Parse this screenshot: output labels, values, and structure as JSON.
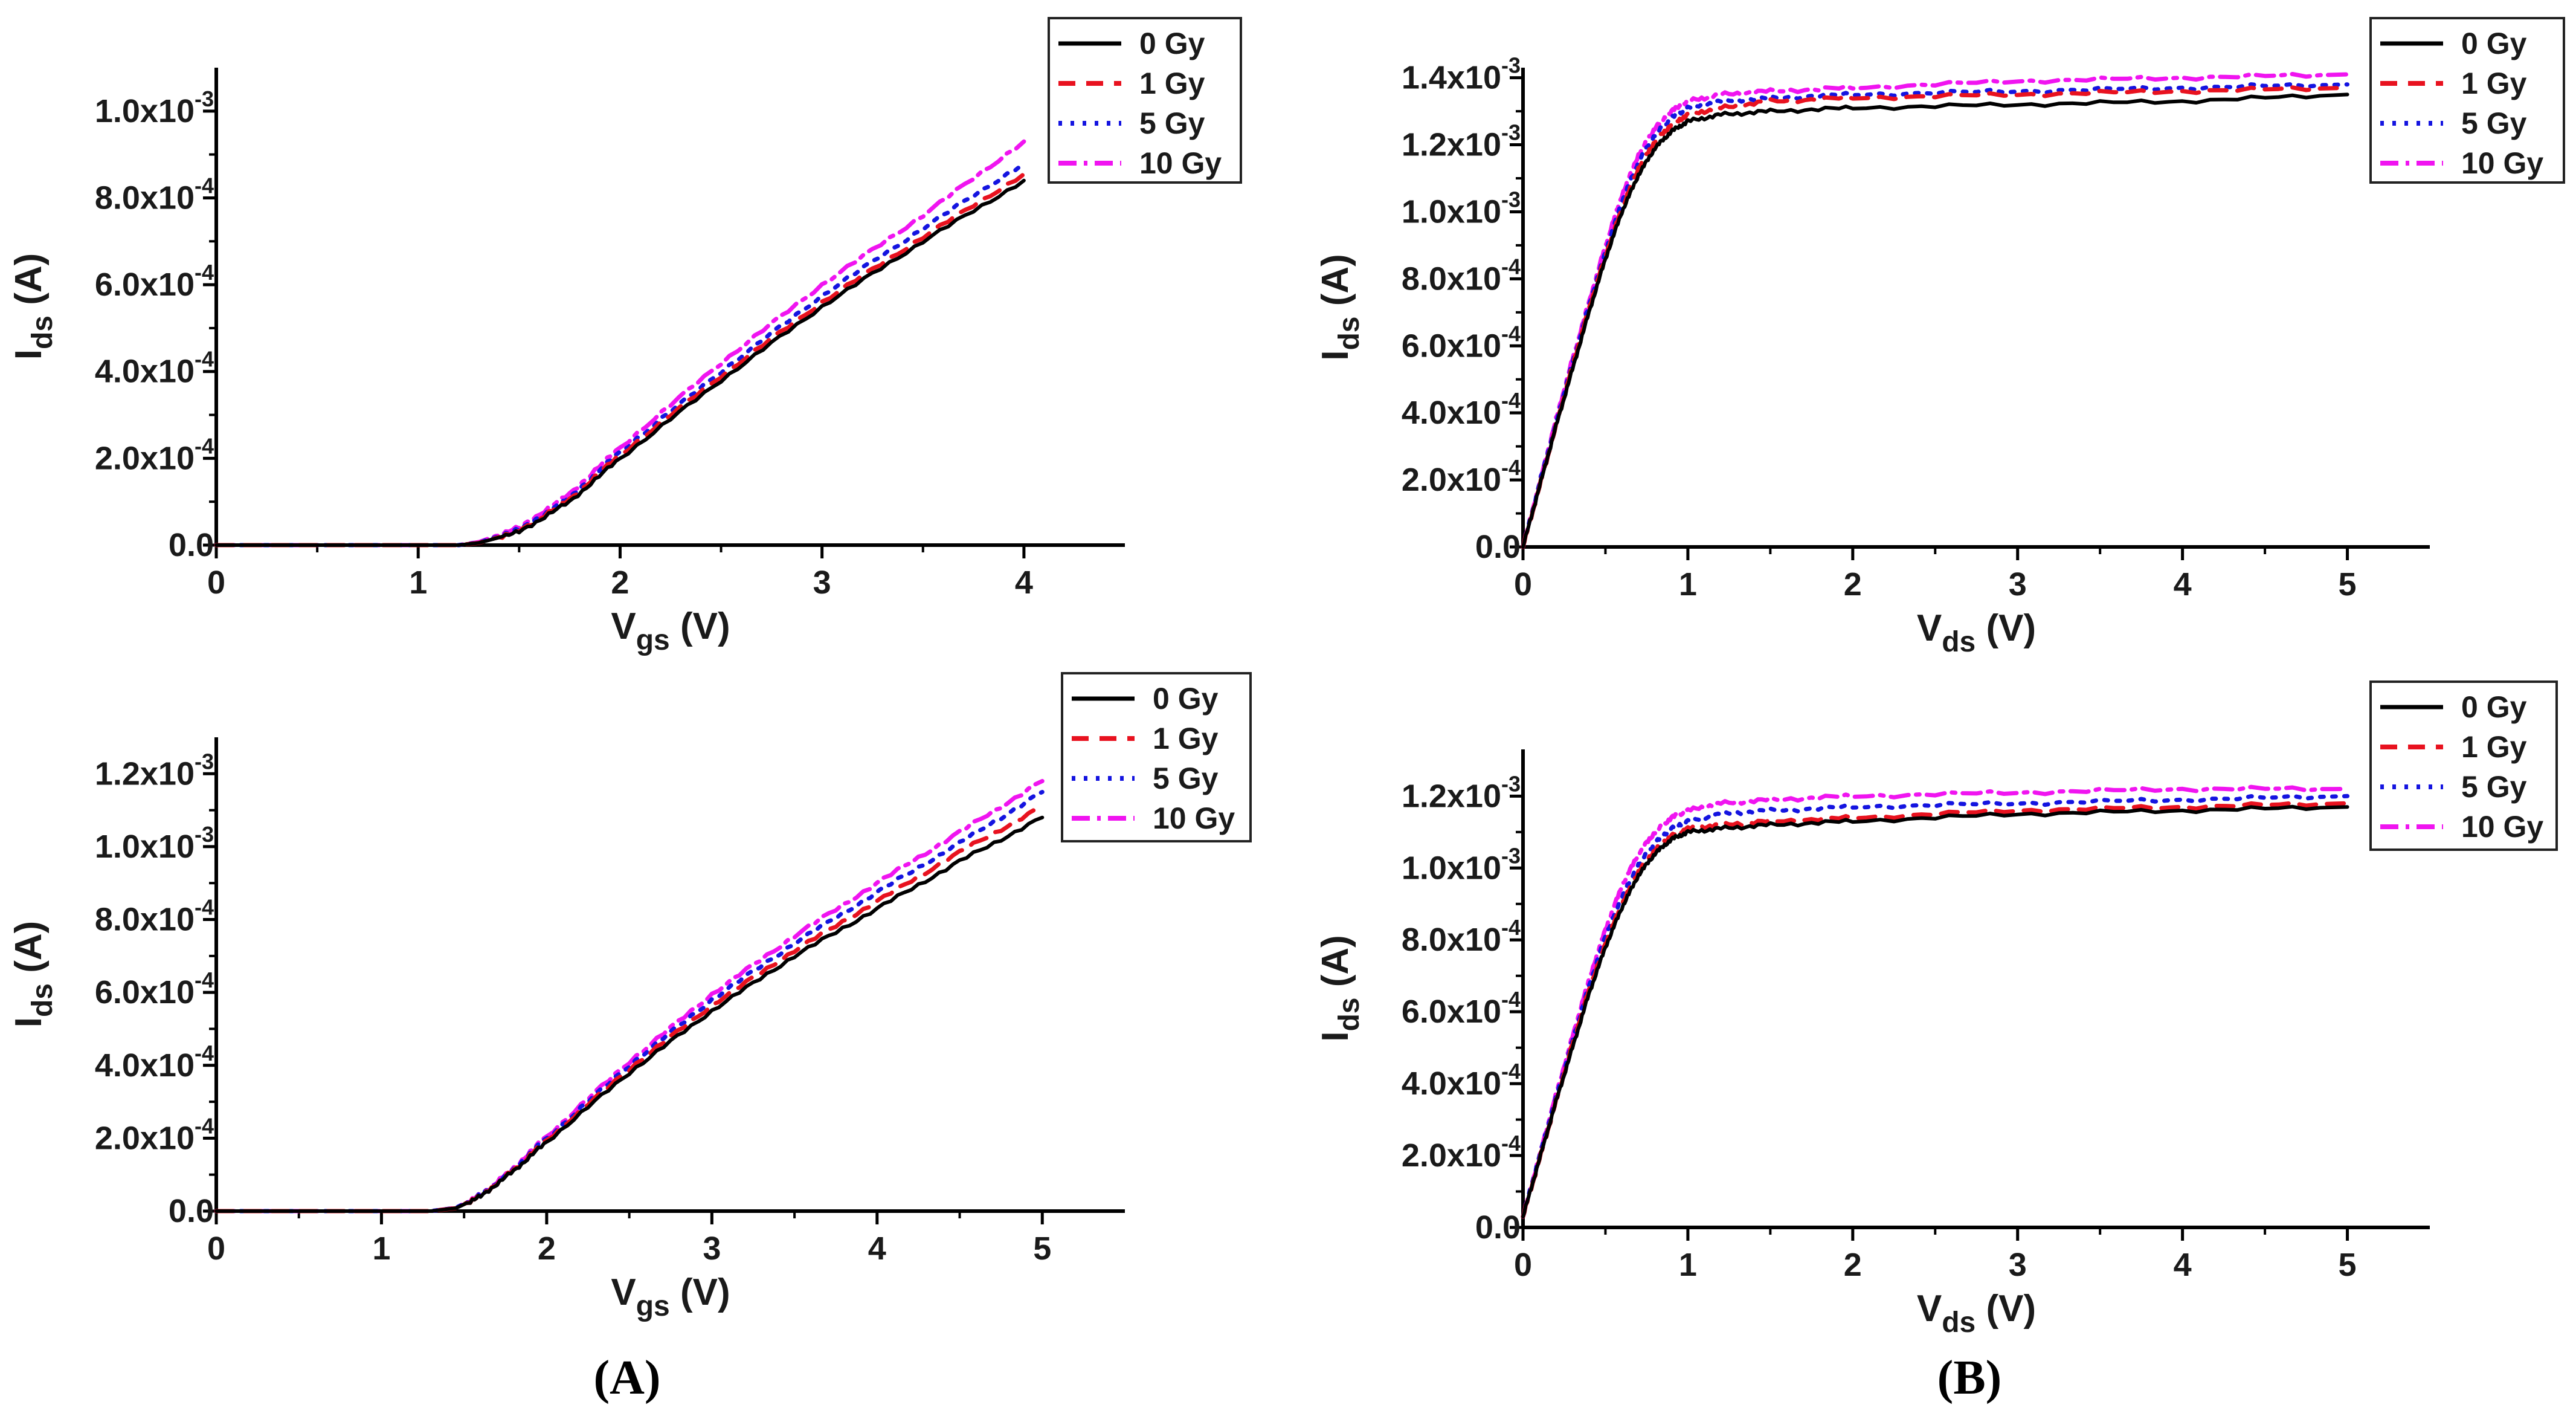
{
  "figure": {
    "panel_labels": [
      "(A)",
      "(B)"
    ]
  },
  "legend": {
    "entries": [
      "0 Gy",
      "1 Gy",
      "5 Gy",
      "10 Gy"
    ]
  },
  "colors": {
    "0 Gy": "#000000",
    "1 Gy": "#e8121f",
    "5 Gy": "#1414e0",
    "10 Gy": "#f014f0"
  },
  "chart_data": [
    {
      "id": "top-left",
      "type": "line",
      "xlabel": "V_gs (V)",
      "ylabel": "I_ds (A)",
      "xlim": [
        0,
        4.5
      ],
      "ylim": [
        0,
        0.0011
      ],
      "xticks": [
        0,
        1,
        2,
        3,
        4
      ],
      "ytick_labels": [
        {
          "value": 0,
          "mant": "0.0",
          "exp": ""
        },
        {
          "value": 0.0002,
          "mant": "2.0x10",
          "exp": "-4"
        },
        {
          "value": 0.0004,
          "mant": "4.0x10",
          "exp": "-4"
        },
        {
          "value": 0.0006,
          "mant": "6.0x10",
          "exp": "-4"
        },
        {
          "value": 0.0008,
          "mant": "8.0x10",
          "exp": "-4"
        },
        {
          "value": 0.001,
          "mant": "1.0x10",
          "exp": "-3"
        }
      ],
      "series": [
        {
          "name": "0 Gy",
          "x": [
            0,
            1.2,
            1.3,
            1.5,
            1.75,
            2.0,
            2.5,
            3.0,
            3.5,
            4.0
          ],
          "y": [
            0,
            0,
            5e-06,
            3e-05,
            0.0001,
            0.0002,
            0.00038,
            0.00055,
            0.0007,
            0.00084
          ]
        },
        {
          "name": "1 Gy",
          "x": [
            0,
            1.2,
            1.3,
            1.5,
            1.75,
            2.0,
            2.5,
            3.0,
            3.5,
            4.0
          ],
          "y": [
            0,
            0,
            5e-06,
            3.2e-05,
            0.000105,
            0.000208,
            0.00039,
            0.00056,
            0.00071,
            0.000855
          ]
        },
        {
          "name": "5 Gy",
          "x": [
            0,
            1.2,
            1.3,
            1.5,
            1.75,
            2.0,
            2.5,
            3.0,
            3.5,
            4.0
          ],
          "y": [
            0,
            0,
            6e-06,
            3.5e-05,
            0.00011,
            0.000215,
            0.0004,
            0.000575,
            0.00073,
            0.00088
          ]
        },
        {
          "name": "10 Gy",
          "x": [
            0,
            1.2,
            1.3,
            1.5,
            1.75,
            2.0,
            2.5,
            3.0,
            3.5,
            4.0
          ],
          "y": [
            0,
            0,
            7e-06,
            4e-05,
            0.000118,
            0.000225,
            0.00042,
            0.0006,
            0.00076,
            0.00093
          ]
        }
      ]
    },
    {
      "id": "top-right",
      "type": "line",
      "xlabel": "V_ds (V)",
      "ylabel": "I_ds (A)",
      "xlim": [
        0,
        5.5
      ],
      "ylim": [
        0,
        0.00143
      ],
      "xticks": [
        0,
        1,
        2,
        3,
        4,
        5
      ],
      "ytick_labels": [
        {
          "value": 0,
          "mant": "0.0",
          "exp": ""
        },
        {
          "value": 0.0002,
          "mant": "2.0x10",
          "exp": "-4"
        },
        {
          "value": 0.0004,
          "mant": "4.0x10",
          "exp": "-4"
        },
        {
          "value": 0.0006,
          "mant": "6.0x10",
          "exp": "-4"
        },
        {
          "value": 0.0008,
          "mant": "8.0x10",
          "exp": "-4"
        },
        {
          "value": 0.001,
          "mant": "1.0x10",
          "exp": "-3"
        },
        {
          "value": 0.0012,
          "mant": "1.2x10",
          "exp": "-3"
        },
        {
          "value": 0.0014,
          "mant": "1.4x10",
          "exp": "-3"
        }
      ],
      "series": [
        {
          "name": "0 Gy",
          "x": [
            0,
            0.1,
            0.2,
            0.3,
            0.4,
            0.5,
            0.6,
            0.7,
            0.8,
            0.9,
            1.0,
            1.2,
            1.5,
            2.0,
            3.0,
            4.0,
            5.0
          ],
          "y": [
            0,
            0.00018,
            0.00036,
            0.00053,
            0.0007,
            0.00086,
            0.001,
            0.00111,
            0.00119,
            0.00124,
            0.00127,
            0.00129,
            0.0013,
            0.00131,
            0.00132,
            0.00133,
            0.00135
          ]
        },
        {
          "name": "1 Gy",
          "x": [
            0,
            0.1,
            0.2,
            0.3,
            0.4,
            0.5,
            0.6,
            0.7,
            0.8,
            0.9,
            1.0,
            1.2,
            1.5,
            2.0,
            3.0,
            4.0,
            5.0
          ],
          "y": [
            0,
            0.00018,
            0.00036,
            0.00054,
            0.00071,
            0.00087,
            0.00101,
            0.00113,
            0.00121,
            0.00126,
            0.00129,
            0.00131,
            0.00133,
            0.00134,
            0.00135,
            0.00136,
            0.00137
          ]
        },
        {
          "name": "5 Gy",
          "x": [
            0,
            0.1,
            0.2,
            0.3,
            0.4,
            0.5,
            0.6,
            0.7,
            0.8,
            0.9,
            1.0,
            1.2,
            1.5,
            2.0,
            3.0,
            4.0,
            5.0
          ],
          "y": [
            0,
            0.00019,
            0.00037,
            0.00055,
            0.00072,
            0.00088,
            0.00103,
            0.00115,
            0.00123,
            0.00128,
            0.00131,
            0.00133,
            0.00134,
            0.00135,
            0.00136,
            0.00137,
            0.00138
          ]
        },
        {
          "name": "10 Gy",
          "x": [
            0,
            0.1,
            0.2,
            0.3,
            0.4,
            0.5,
            0.6,
            0.7,
            0.8,
            0.9,
            1.0,
            1.2,
            1.5,
            2.0,
            3.0,
            4.0,
            5.0
          ],
          "y": [
            0,
            0.00019,
            0.00038,
            0.00056,
            0.00073,
            0.0009,
            0.00105,
            0.00117,
            0.00125,
            0.0013,
            0.00133,
            0.00135,
            0.00136,
            0.00137,
            0.00139,
            0.0014,
            0.00141
          ]
        }
      ]
    },
    {
      "id": "bottom-left",
      "type": "line",
      "xlabel": "V_gs (V)",
      "ylabel": "I_ds (A)",
      "xlim": [
        0,
        5.5
      ],
      "ylim": [
        0,
        0.0013
      ],
      "xticks": [
        0,
        1,
        2,
        3,
        4,
        5
      ],
      "ytick_labels": [
        {
          "value": 0,
          "mant": "0.0",
          "exp": ""
        },
        {
          "value": 0.0002,
          "mant": "2.0x10",
          "exp": "-4"
        },
        {
          "value": 0.0004,
          "mant": "4.0x10",
          "exp": "-4"
        },
        {
          "value": 0.0006,
          "mant": "6.0x10",
          "exp": "-4"
        },
        {
          "value": 0.0008,
          "mant": "8.0x10",
          "exp": "-4"
        },
        {
          "value": 0.001,
          "mant": "1.0x10",
          "exp": "-3"
        },
        {
          "value": 0.0012,
          "mant": "1.2x10",
          "exp": "-3"
        }
      ],
      "series": [
        {
          "name": "0 Gy",
          "x": [
            0,
            1.3,
            1.45,
            1.6,
            1.8,
            2.0,
            2.5,
            3.0,
            3.5,
            4.0,
            4.5,
            5.0
          ],
          "y": [
            0,
            0,
            8e-06,
            4e-05,
            0.00011,
            0.00019,
            0.00038,
            0.00055,
            0.0007,
            0.00083,
            0.00096,
            0.00108
          ]
        },
        {
          "name": "1 Gy",
          "x": [
            0,
            1.3,
            1.45,
            1.6,
            1.8,
            2.0,
            2.5,
            3.0,
            3.5,
            4.0,
            4.5,
            5.0
          ],
          "y": [
            0,
            0,
            8e-06,
            4.1e-05,
            0.000112,
            0.000195,
            0.00039,
            0.000565,
            0.000715,
            0.00085,
            0.000985,
            0.00111
          ]
        },
        {
          "name": "5 Gy",
          "x": [
            0,
            1.3,
            1.45,
            1.6,
            1.8,
            2.0,
            2.5,
            3.0,
            3.5,
            4.0,
            4.5,
            5.0
          ],
          "y": [
            0,
            0,
            9e-06,
            4.3e-05,
            0.000115,
            0.0002,
            0.0004,
            0.00058,
            0.000735,
            0.000875,
            0.00101,
            0.00115
          ]
        },
        {
          "name": "10 Gy",
          "x": [
            0,
            1.3,
            1.45,
            1.6,
            1.8,
            2.0,
            2.5,
            3.0,
            3.5,
            4.0,
            4.5,
            5.0
          ],
          "y": [
            0,
            0,
            9e-06,
            4.4e-05,
            0.000118,
            0.000205,
            0.00041,
            0.000595,
            0.000755,
            0.0009,
            0.00104,
            0.00118
          ]
        }
      ]
    },
    {
      "id": "bottom-right",
      "type": "line",
      "xlabel": "V_ds (V)",
      "ylabel": "I_ds (A)",
      "xlim": [
        0,
        5.5
      ],
      "ylim": [
        0,
        0.00133
      ],
      "xticks": [
        0,
        1,
        2,
        3,
        4,
        5
      ],
      "ytick_labels": [
        {
          "value": 0,
          "mant": "0.0",
          "exp": ""
        },
        {
          "value": 0.0002,
          "mant": "2.0x10",
          "exp": "-4"
        },
        {
          "value": 0.0004,
          "mant": "4.0x10",
          "exp": "-4"
        },
        {
          "value": 0.0006,
          "mant": "6.0x10",
          "exp": "-4"
        },
        {
          "value": 0.0008,
          "mant": "8.0x10",
          "exp": "-4"
        },
        {
          "value": 0.001,
          "mant": "1.0x10",
          "exp": "-3"
        },
        {
          "value": 0.0012,
          "mant": "1.2x10",
          "exp": "-3"
        }
      ],
      "series": [
        {
          "name": "0 Gy",
          "x": [
            0,
            0.1,
            0.2,
            0.3,
            0.4,
            0.5,
            0.6,
            0.7,
            0.8,
            0.9,
            1.0,
            1.2,
            1.5,
            2.0,
            3.0,
            4.0,
            5.0
          ],
          "y": [
            3e-05,
            0.00019,
            0.00035,
            0.0005,
            0.00065,
            0.00078,
            0.00089,
            0.00098,
            0.00104,
            0.00108,
            0.0011,
            0.00111,
            0.00112,
            0.00113,
            0.00115,
            0.00116,
            0.00117
          ]
        },
        {
          "name": "1 Gy",
          "x": [
            0,
            0.1,
            0.2,
            0.3,
            0.4,
            0.5,
            0.6,
            0.7,
            0.8,
            0.9,
            1.0,
            1.2,
            1.5,
            2.0,
            3.0,
            4.0,
            5.0
          ],
          "y": [
            3e-05,
            0.00019,
            0.00035,
            0.00051,
            0.00066,
            0.00079,
            0.0009,
            0.00099,
            0.00105,
            0.00109,
            0.00111,
            0.00112,
            0.00113,
            0.00114,
            0.00116,
            0.00117,
            0.00118
          ]
        },
        {
          "name": "5 Gy",
          "x": [
            0,
            0.1,
            0.2,
            0.3,
            0.4,
            0.5,
            0.6,
            0.7,
            0.8,
            0.9,
            1.0,
            1.2,
            1.5,
            2.0,
            3.0,
            4.0,
            5.0
          ],
          "y": [
            3e-05,
            0.0002,
            0.00036,
            0.00052,
            0.00067,
            0.00081,
            0.00092,
            0.00101,
            0.00107,
            0.00111,
            0.00113,
            0.00115,
            0.00116,
            0.00117,
            0.00118,
            0.00119,
            0.0012
          ]
        },
        {
          "name": "10 Gy",
          "x": [
            0,
            0.1,
            0.2,
            0.3,
            0.4,
            0.5,
            0.6,
            0.7,
            0.8,
            0.9,
            1.0,
            1.2,
            1.5,
            2.0,
            3.0,
            4.0,
            5.0
          ],
          "y": [
            3e-05,
            0.0002,
            0.00037,
            0.00053,
            0.00069,
            0.00083,
            0.00095,
            0.00104,
            0.0011,
            0.00114,
            0.00116,
            0.00118,
            0.00119,
            0.0012,
            0.00121,
            0.00122,
            0.00122
          ]
        }
      ]
    }
  ]
}
